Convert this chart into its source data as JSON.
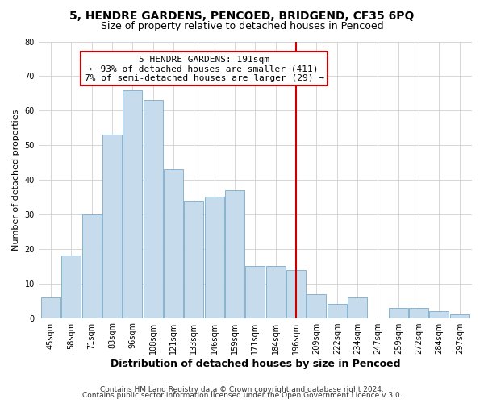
{
  "title": "5, HENDRE GARDENS, PENCOED, BRIDGEND, CF35 6PQ",
  "subtitle": "Size of property relative to detached houses in Pencoed",
  "xlabel": "Distribution of detached houses by size in Pencoed",
  "ylabel": "Number of detached properties",
  "footer_line1": "Contains HM Land Registry data © Crown copyright and database right 2024.",
  "footer_line2": "Contains public sector information licensed under the Open Government Licence v 3.0.",
  "bar_labels": [
    "45sqm",
    "58sqm",
    "71sqm",
    "83sqm",
    "96sqm",
    "108sqm",
    "121sqm",
    "133sqm",
    "146sqm",
    "159sqm",
    "171sqm",
    "184sqm",
    "196sqm",
    "209sqm",
    "222sqm",
    "234sqm",
    "247sqm",
    "259sqm",
    "272sqm",
    "284sqm",
    "297sqm"
  ],
  "bar_values": [
    6,
    18,
    30,
    53,
    66,
    63,
    43,
    34,
    35,
    37,
    15,
    15,
    14,
    7,
    4,
    6,
    0,
    3,
    3,
    2,
    1
  ],
  "bar_color": "#c6dcec",
  "bar_edge_color": "#7aaac8",
  "annotation_box_text_line1": "5 HENDRE GARDENS: 191sqm",
  "annotation_box_text_line2": "← 93% of detached houses are smaller (411)",
  "annotation_box_text_line3": "7% of semi-detached houses are larger (29) →",
  "annotation_box_facecolor": "#ffffff",
  "annotation_box_edgecolor": "#cc0000",
  "vline_color": "#cc0000",
  "vline_x_index": 12,
  "ylim": [
    0,
    80
  ],
  "yticks": [
    0,
    10,
    20,
    30,
    40,
    50,
    60,
    70,
    80
  ],
  "background_color": "#ffffff",
  "grid_color": "#d0d0d0",
  "title_fontsize": 10,
  "subtitle_fontsize": 9,
  "xlabel_fontsize": 9,
  "ylabel_fontsize": 8,
  "tick_fontsize": 7,
  "annotation_fontsize": 8,
  "footer_fontsize": 6.5
}
